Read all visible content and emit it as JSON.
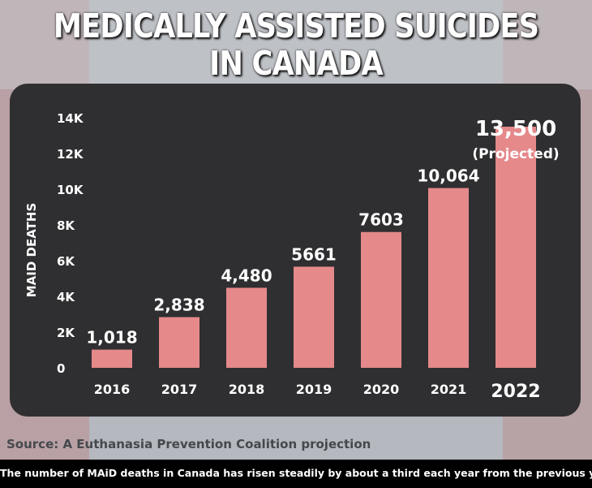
{
  "title_line1": "MEDICALLY ASSISTED SUICIDES",
  "title_line2": "IN CANADA",
  "source": "Source: A Euthanasia Prevention Coalition projection",
  "caption": "The number of MAiD deaths in Canada has risen steadily by about a third each year from the previous year",
  "colors": {
    "bar": "#e5898b",
    "panel": "#2f2f31",
    "text": "#ffffff"
  },
  "chart_data": {
    "type": "bar",
    "categories": [
      "2016",
      "2017",
      "2018",
      "2019",
      "2020",
      "2021",
      "2022"
    ],
    "values": [
      1018,
      2838,
      4480,
      5661,
      7603,
      10064,
      13500
    ],
    "data_labels": [
      "1,018",
      "2,838",
      "4,480",
      "5661",
      "7603",
      "10,064",
      "13,500"
    ],
    "annotation": "(Projected)",
    "ylabel": "MAID DEATHS",
    "ylim": [
      0,
      14000
    ],
    "yticks": [
      {
        "value": 0,
        "label": "0"
      },
      {
        "value": 2000,
        "label": "2K"
      },
      {
        "value": 4000,
        "label": "4K"
      },
      {
        "value": 6000,
        "label": "6K"
      },
      {
        "value": 8000,
        "label": "8K"
      },
      {
        "value": 10000,
        "label": "10K"
      },
      {
        "value": 12000,
        "label": "12K"
      },
      {
        "value": 14000,
        "label": "14K"
      }
    ],
    "grid": false,
    "legend": "none"
  }
}
